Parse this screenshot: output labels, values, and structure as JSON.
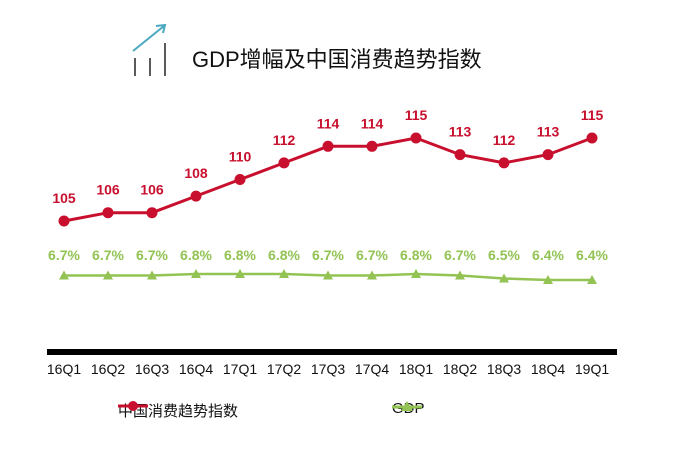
{
  "chart_data": {
    "type": "line",
    "title": "GDP增幅及中国消费趋势指数",
    "categories": [
      "16Q1",
      "16Q2",
      "16Q3",
      "16Q4",
      "17Q1",
      "17Q2",
      "17Q3",
      "17Q4",
      "18Q1",
      "18Q2",
      "18Q3",
      "18Q4",
      "19Q1"
    ],
    "series": [
      {
        "name": "中国消费趋势指数",
        "color": "#c8102e",
        "marker": "circle",
        "values": [
          105,
          106,
          106,
          108,
          110,
          112,
          114,
          114,
          115,
          113,
          112,
          113,
          115
        ],
        "labels": [
          "105",
          "106",
          "106",
          "108",
          "110",
          "112",
          "114",
          "114",
          "115",
          "113",
          "112",
          "113",
          "115"
        ]
      },
      {
        "name": "GDP",
        "color": "#92c353",
        "marker": "triangle",
        "values": [
          6.7,
          6.7,
          6.7,
          6.8,
          6.8,
          6.8,
          6.7,
          6.7,
          6.8,
          6.7,
          6.5,
          6.4,
          6.4
        ],
        "labels": [
          "6.7%",
          "6.7%",
          "6.7%",
          "6.8%",
          "6.8%",
          "6.8%",
          "6.7%",
          "6.7%",
          "6.8%",
          "6.7%",
          "6.5%",
          "6.4%",
          "6.4%"
        ]
      }
    ],
    "legend": "bottom",
    "grid": false,
    "title_icon": "rising-chart-icon",
    "icon_color": "#4aa8c0"
  }
}
